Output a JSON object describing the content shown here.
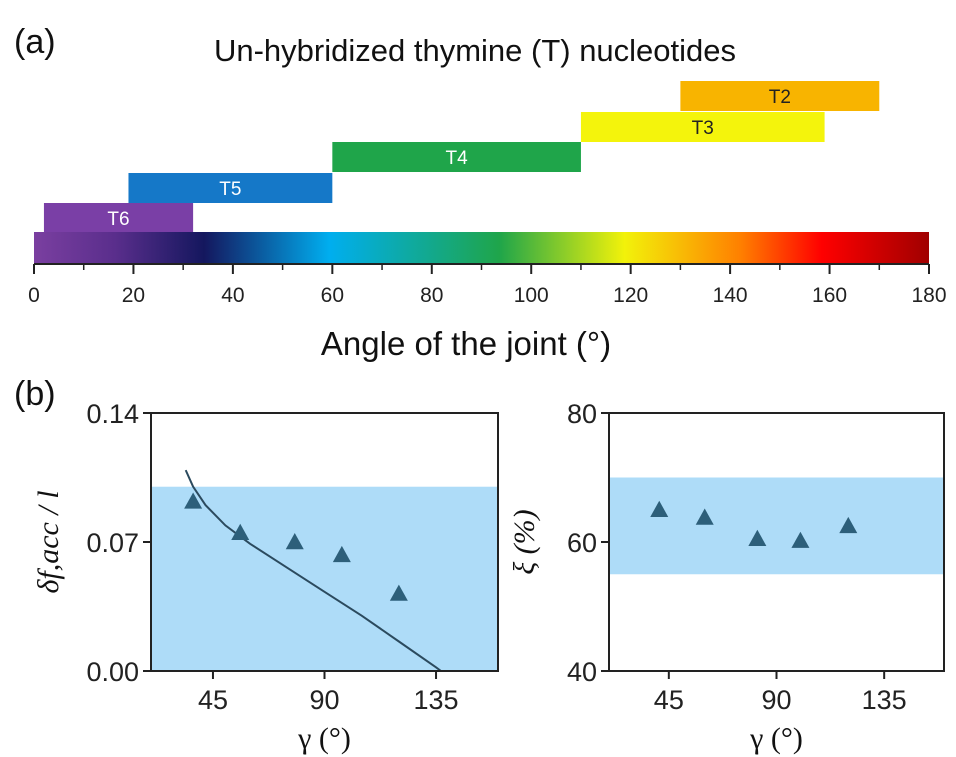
{
  "panel_a": {
    "label": "(a)",
    "title": "Un-hybridized thymine (T) nucleotides",
    "xlabel": "Angle of the joint (°)"
  },
  "panel_b": {
    "label": "(b)"
  },
  "colors": {
    "shade": "#aedcf8",
    "marker": "#2d5f7a",
    "curve": "#2b4a5e",
    "colorbar": [
      "#7a3fa0",
      "#1a1a6e",
      "#00aeef",
      "#1fa54a",
      "#f2f20a",
      "#ff0000",
      "#a00000"
    ]
  },
  "chart_data": [
    {
      "type": "bar",
      "orientation": "horizontal-range",
      "title": "Un-hybridized thymine (T) nucleotides",
      "xlabel": "Angle of the joint (°)",
      "xlim": [
        0,
        180
      ],
      "xticks": [
        0,
        20,
        40,
        60,
        80,
        100,
        120,
        140,
        160,
        180
      ],
      "bars": [
        {
          "label": "T6",
          "start": 2,
          "end": 32,
          "color": "#7a3fa6"
        },
        {
          "label": "T5",
          "start": 19,
          "end": 60,
          "color": "#1578c8"
        },
        {
          "label": "T4",
          "start": 60,
          "end": 110,
          "color": "#1fa54a"
        },
        {
          "label": "T3",
          "start": 110,
          "end": 159,
          "color": "#f4f40c"
        },
        {
          "label": "T2",
          "start": 130,
          "end": 170,
          "color": "#f8b400"
        }
      ]
    },
    {
      "type": "scatter",
      "xlabel": "γ (°)",
      "ylabel": "δf,acc / l",
      "xlim": [
        20,
        160
      ],
      "ylim": [
        0,
        0.14
      ],
      "xticks": [
        45,
        90,
        135
      ],
      "yticks": [
        "0.00",
        "0.07",
        "0.14"
      ],
      "shaded_band": [
        0,
        0.1
      ],
      "points": [
        {
          "x": 37,
          "y": 0.092
        },
        {
          "x": 56,
          "y": 0.075
        },
        {
          "x": 78,
          "y": 0.07
        },
        {
          "x": 97,
          "y": 0.063
        },
        {
          "x": 120,
          "y": 0.042
        }
      ],
      "curve": [
        {
          "x": 34,
          "y": 0.109
        },
        {
          "x": 37,
          "y": 0.1
        },
        {
          "x": 42,
          "y": 0.09
        },
        {
          "x": 50,
          "y": 0.079
        },
        {
          "x": 60,
          "y": 0.069
        },
        {
          "x": 75,
          "y": 0.056
        },
        {
          "x": 90,
          "y": 0.043
        },
        {
          "x": 105,
          "y": 0.03
        },
        {
          "x": 120,
          "y": 0.016
        },
        {
          "x": 135,
          "y": 0.002
        },
        {
          "x": 137,
          "y": 0
        }
      ]
    },
    {
      "type": "scatter",
      "xlabel": "γ (°)",
      "ylabel": "ξ (%)",
      "xlim": [
        20,
        160
      ],
      "ylim": [
        40,
        80
      ],
      "xticks": [
        45,
        90,
        135
      ],
      "yticks": [
        "40",
        "60",
        "80"
      ],
      "shaded_band": [
        55,
        70
      ],
      "points": [
        {
          "x": 41,
          "y": 65
        },
        {
          "x": 60,
          "y": 63.8
        },
        {
          "x": 82,
          "y": 60.5
        },
        {
          "x": 100,
          "y": 60.2
        },
        {
          "x": 120,
          "y": 62.5
        }
      ]
    }
  ]
}
